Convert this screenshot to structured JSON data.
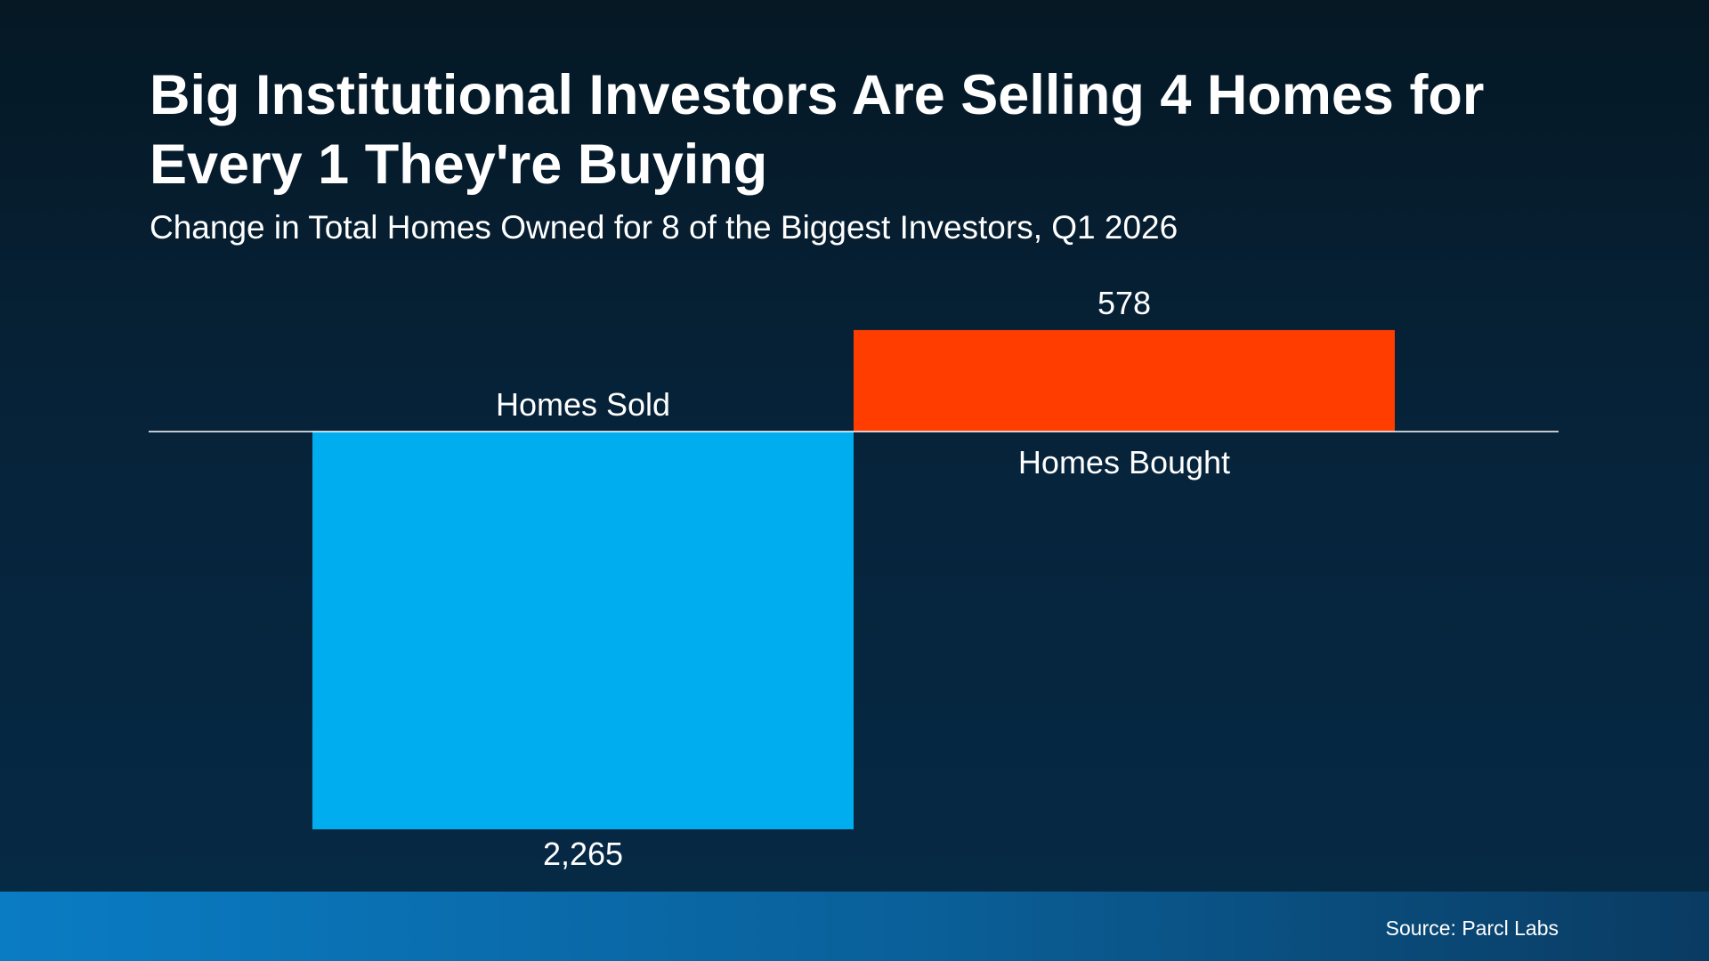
{
  "title": "Big Institutional Investors Are Selling 4 Homes for Every 1 They're Buying",
  "subtitle": "Change in Total Homes Owned for 8 of the Biggest Investors, Q1 2026",
  "source": "Source: Parcl Labs",
  "chart_data": {
    "type": "bar",
    "categories": [
      "Homes Sold",
      "Homes Bought"
    ],
    "values": [
      -2265,
      578
    ],
    "data_labels": [
      "2,265",
      "578"
    ],
    "colors": [
      "#00adee",
      "#ff3d00"
    ],
    "grid": false,
    "legend": "none",
    "xlabel": "",
    "ylabel": ""
  }
}
